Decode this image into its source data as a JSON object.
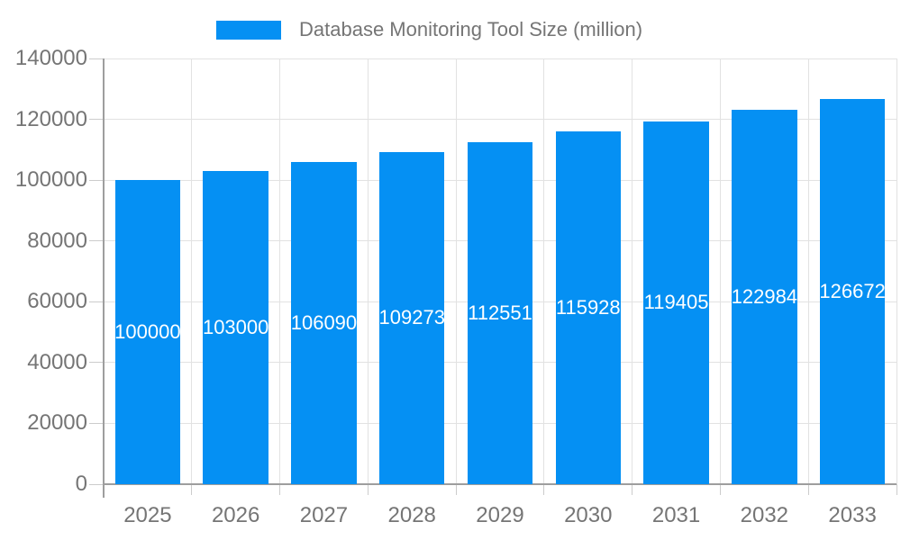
{
  "chart_data": {
    "type": "bar",
    "title": "Database Monitoring Tool Size (million)",
    "legend": {
      "position": "top-center",
      "label": "Database Monitoring Tool Size (million)"
    },
    "categories": [
      "2025",
      "2026",
      "2027",
      "2028",
      "2029",
      "2030",
      "2031",
      "2032",
      "2033"
    ],
    "series": [
      {
        "name": "Database Monitoring Tool Size (million)",
        "values": [
          100000,
          103000,
          106090,
          109273,
          112551,
          115928,
          119405,
          122984,
          126672
        ]
      }
    ],
    "value_labels": [
      "100000",
      "103000",
      "106090",
      "109273",
      "112551",
      "115928",
      "119405",
      "122984",
      "126672"
    ],
    "xlabel": "",
    "ylabel": "",
    "ylim": [
      0,
      140000
    ],
    "yticks": [
      0,
      20000,
      40000,
      60000,
      80000,
      100000,
      120000,
      140000
    ],
    "ytick_labels": [
      "0",
      "20000",
      "40000",
      "60000",
      "80000",
      "100000",
      "120000",
      "140000"
    ],
    "grid": true,
    "bar_value_labels_inside": true
  },
  "colors": {
    "bar": "#0590f3",
    "axis_text": "#757575",
    "grid_line": "#e2e2e2",
    "axis_line": "#9e9e9e",
    "tick_line": "#cccccc",
    "bar_label_text": "#ffffff",
    "background": "#ffffff"
  }
}
